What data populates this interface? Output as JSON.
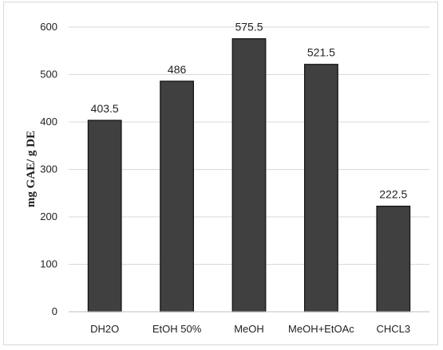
{
  "chart_data": {
    "type": "bar",
    "title": "",
    "xlabel": "",
    "ylabel": "mg GAE/ g DE",
    "categories": [
      "DH2O",
      "EtOH 50%",
      "MeOH",
      "MeOH+EtOAc",
      "CHCL3"
    ],
    "values": [
      403.5,
      486,
      575.5,
      521.5,
      222.5
    ],
    "value_labels": [
      "403.5",
      "486",
      "575.5",
      "521.5",
      "222.5"
    ],
    "ylim": [
      0,
      600
    ],
    "yticks": [
      0,
      100,
      200,
      300,
      400,
      500,
      600
    ],
    "grid": true,
    "legend": "none",
    "colors": {
      "bar_fill": "#404040",
      "bar_stroke": "#111111",
      "grid": "#d9d9d9",
      "axis": "#bfbfbf"
    }
  }
}
